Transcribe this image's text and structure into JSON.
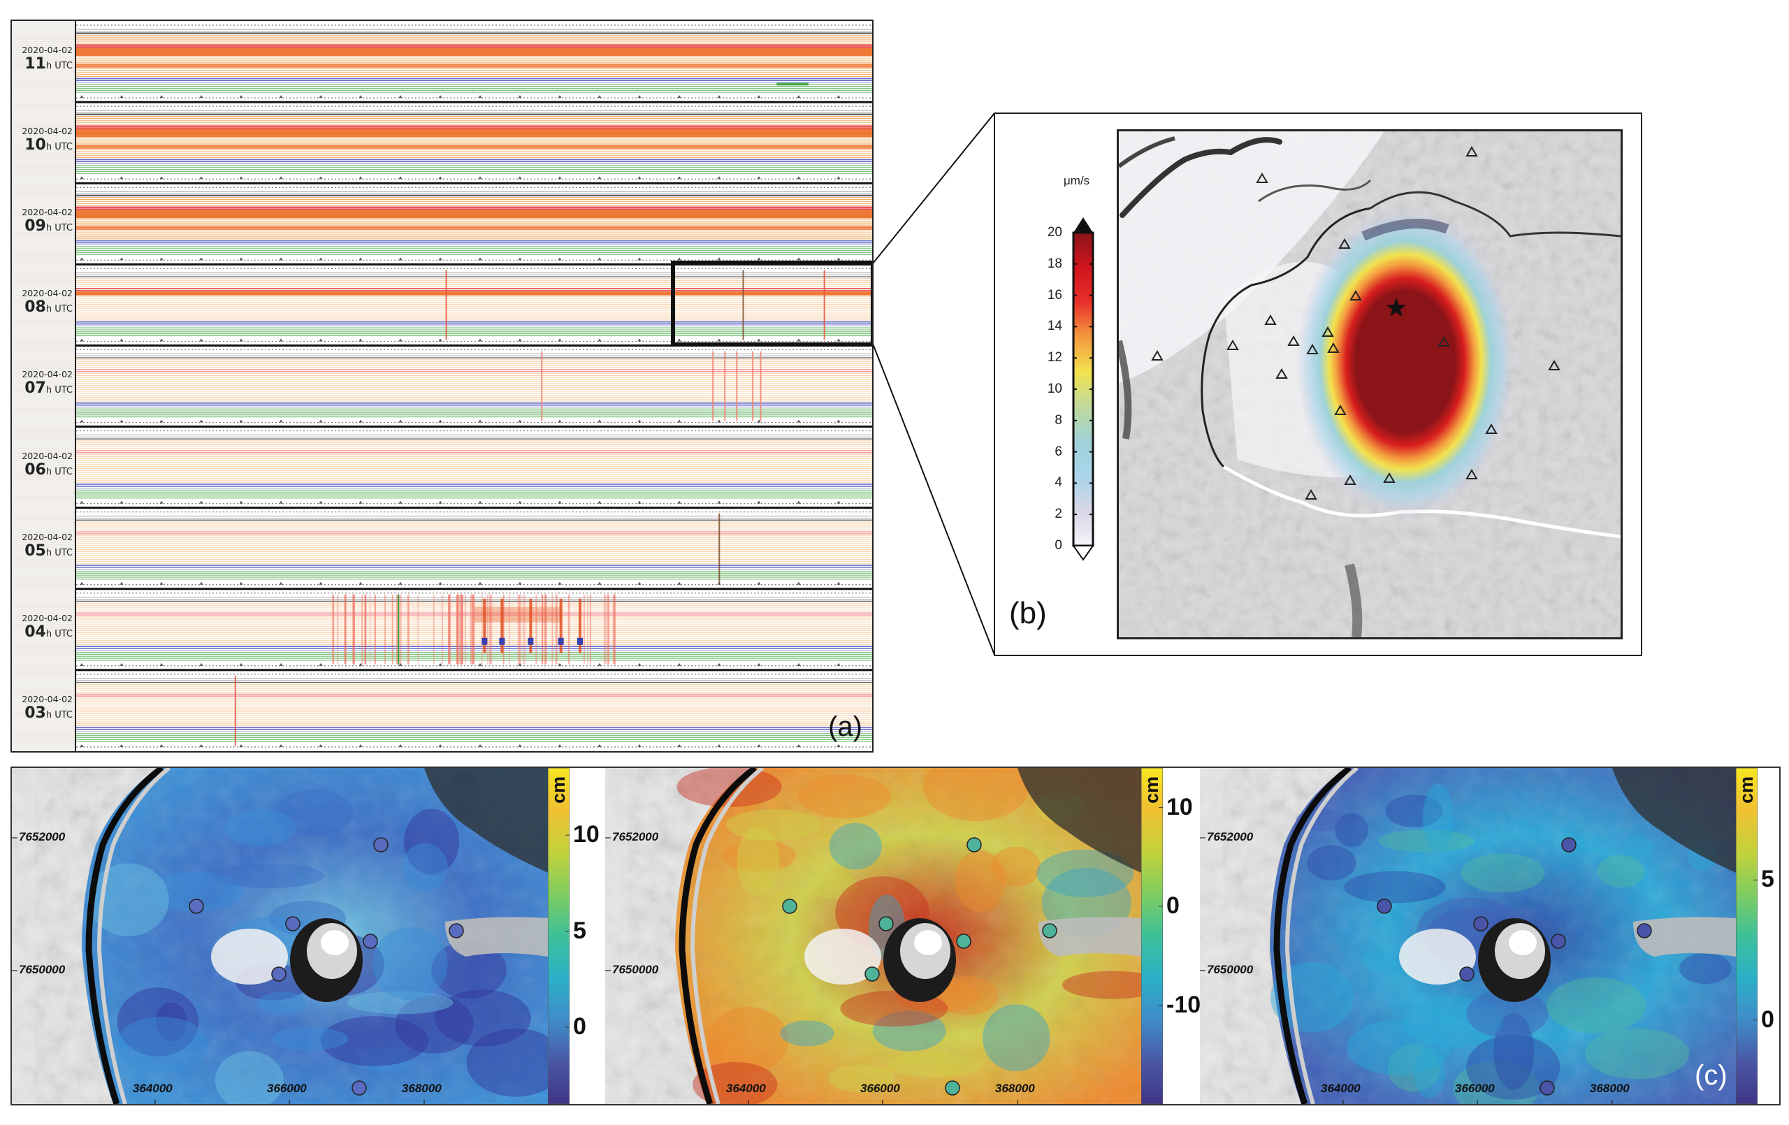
{
  "panel_a": {
    "label": "(a)",
    "strips": [
      {
        "date": "2020-04-02",
        "hour": "11",
        "unit": "h UTC",
        "level": "high"
      },
      {
        "date": "2020-04-02",
        "hour": "10",
        "unit": "h UTC",
        "level": "high"
      },
      {
        "date": "2020-04-02",
        "hour": "09",
        "unit": "h UTC",
        "level": "high"
      },
      {
        "date": "2020-04-02",
        "hour": "08",
        "unit": "h UTC",
        "level": "mid"
      },
      {
        "date": "2020-04-02",
        "hour": "07",
        "unit": "h UTC",
        "level": "low"
      },
      {
        "date": "2020-04-02",
        "hour": "06",
        "unit": "h UTC",
        "level": "low"
      },
      {
        "date": "2020-04-02",
        "hour": "05",
        "unit": "h UTC",
        "level": "low"
      },
      {
        "date": "2020-04-02",
        "hour": "04",
        "unit": "h UTC",
        "level": "low"
      },
      {
        "date": "2020-04-02",
        "hour": "03",
        "unit": "h UTC",
        "level": "low"
      }
    ],
    "events": [
      {
        "strip": 3,
        "t": 0.465,
        "color": "#e8503a"
      },
      {
        "strip": 3,
        "t": 0.838,
        "color": "#7a5030"
      },
      {
        "strip": 3,
        "t": 0.94,
        "color": "#e8503a"
      },
      {
        "strip": 4,
        "t": 0.585,
        "color": "#f08070"
      },
      {
        "strip": 4,
        "t": 0.8,
        "color": "#f08070"
      },
      {
        "strip": 4,
        "t": 0.815,
        "color": "#f08070"
      },
      {
        "strip": 4,
        "t": 0.83,
        "color": "#f08070"
      },
      {
        "strip": 4,
        "t": 0.85,
        "color": "#f08070"
      },
      {
        "strip": 4,
        "t": 0.86,
        "color": "#f08070"
      },
      {
        "strip": 6,
        "t": 0.808,
        "color": "#7a4a2a"
      },
      {
        "strip": 8,
        "t": 0.2,
        "color": "#e8503a"
      }
    ],
    "burst": {
      "strip": 7,
      "t_start": 0.32,
      "t_end": 0.68,
      "peaks": [
        0.513,
        0.535,
        0.571,
        0.609,
        0.633
      ]
    },
    "channel_colors": {
      "grey": "#9a8a8a",
      "black": "#333333",
      "orange": "#f0a050",
      "red": "#e84040",
      "deep_orange": "#ec6a20",
      "blue": "#4650b8",
      "green": "#4caa4c"
    }
  },
  "panel_b": {
    "label": "(b)",
    "colorbar_unit": "μm/s",
    "colorbar_ticks": [
      "20",
      "18",
      "16",
      "14",
      "12",
      "10",
      "8",
      "6",
      "4",
      "2",
      "0"
    ],
    "colorbar_range": [
      0,
      20
    ],
    "colorbar_stops": [
      "#f4f4f8",
      "#d8d6e6",
      "#a9d4ea",
      "#9fd2d8",
      "#c0d89c",
      "#f2e24e",
      "#f39a40",
      "#e8302a",
      "#d0141e",
      "#8a1418"
    ],
    "stations": 20,
    "epicenter": "star"
  },
  "panel_c": {
    "label": "(c)",
    "maps": [
      {
        "name": "map-1",
        "unit": "cm",
        "ticks": [
          "10",
          "5",
          "0"
        ],
        "range": [
          -4,
          13.5
        ],
        "northing_labels": [
          "7652000",
          "7650000"
        ],
        "easting_labels": [
          "364000",
          "366000",
          "368000"
        ],
        "station_color": "#5a6cc0",
        "theme": "blue"
      },
      {
        "name": "map-2",
        "unit": "cm",
        "ticks": [
          "10",
          "0",
          "-10"
        ],
        "range": [
          -20,
          14
        ],
        "northing_labels": [
          "7652000",
          "7650000"
        ],
        "easting_labels": [
          "364000",
          "366000",
          "368000"
        ],
        "station_color": "#4fb39a",
        "theme": "mixed"
      },
      {
        "name": "map-3",
        "unit": "cm",
        "ticks": [
          "5",
          "0"
        ],
        "range": [
          -3,
          9
        ],
        "northing_labels": [
          "7652000",
          "7650000"
        ],
        "easting_labels": [
          "364000",
          "366000",
          "368000"
        ],
        "station_color": "#4a54a8",
        "theme": "cyan"
      }
    ],
    "viridis_stops": [
      "#3f3585",
      "#4a57a5",
      "#3f8cc8",
      "#2bb0c7",
      "#3ec09a",
      "#7fcc60",
      "#c4d23a",
      "#f0c032",
      "#f6e620"
    ]
  }
}
